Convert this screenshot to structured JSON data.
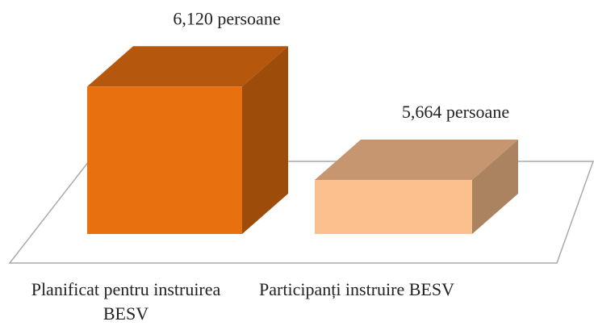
{
  "chart_data": {
    "type": "bar3d",
    "categories": [
      "Planificat pentru instruirea BESV",
      "Participanți instruire BESV"
    ],
    "values": [
      6120,
      5664
    ],
    "value_labels": [
      "6,120 persoane",
      "5,664 persoane"
    ],
    "colors": [
      "#e8700f",
      "#fcc08e"
    ],
    "ylim": [
      5400,
      6200
    ]
  }
}
